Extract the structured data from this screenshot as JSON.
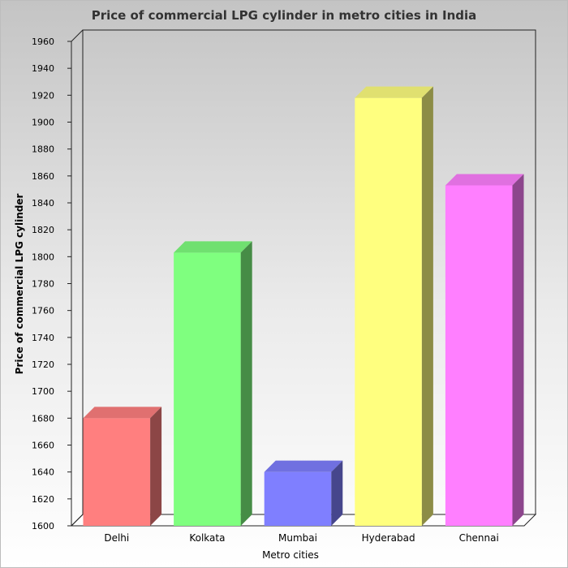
{
  "chart_data": {
    "type": "bar",
    "title": "Price of commercial LPG cylinder in metro cities in India",
    "xlabel": "Metro cities",
    "ylabel": "Price of commercial LPG cylinder",
    "categories": [
      "Delhi",
      "Kolkata",
      "Mumbai",
      "Hyderabad",
      "Chennai"
    ],
    "values": [
      1680,
      1803,
      1640,
      1918,
      1853
    ],
    "colors": [
      "#ff7f7f",
      "#7fff7f",
      "#7f7fff",
      "#ffff7f",
      "#ff7fff"
    ],
    "ylim": [
      1600,
      1960
    ],
    "yticks": [
      1600,
      1620,
      1640,
      1660,
      1680,
      1700,
      1720,
      1740,
      1760,
      1780,
      1800,
      1820,
      1840,
      1860,
      1880,
      1900,
      1920,
      1940,
      1960
    ],
    "grid": false,
    "legend": "none",
    "style": "3d"
  }
}
